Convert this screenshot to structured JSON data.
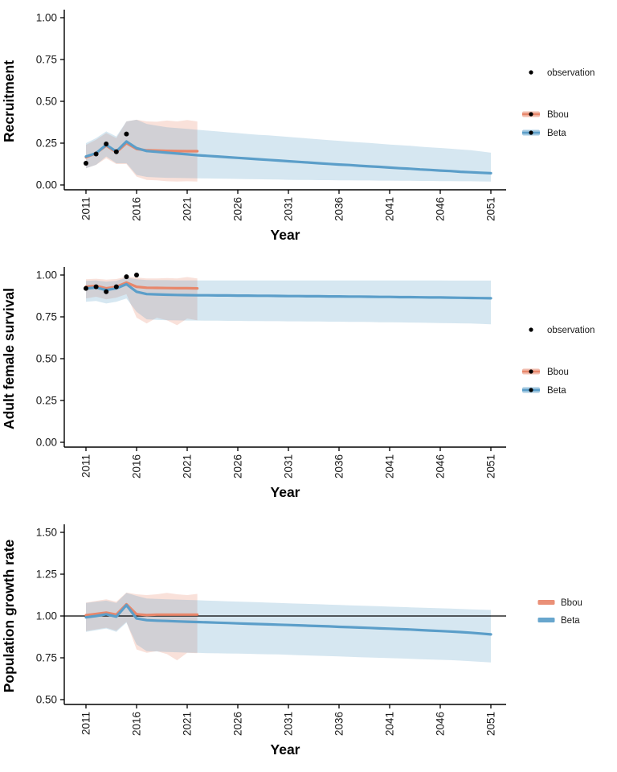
{
  "colors": {
    "bbou": "#E8876B",
    "beta": "#5B9EC9",
    "observation": "#000000",
    "axis": "#000000",
    "tick_label": "#1a1a1a",
    "background": "#FFFFFF"
  },
  "chart_data": [
    {
      "type": "line",
      "title": "",
      "ylabel": "Recruitment",
      "xlabel": "Year",
      "ylim": [
        0.0,
        1.0
      ],
      "xlim": [
        2009,
        2052
      ],
      "grid": false,
      "legend_position": "right",
      "yticks": [
        "0.00",
        "0.25",
        "0.50",
        "0.75",
        "1.00"
      ],
      "xticks": [
        2011,
        2016,
        2021,
        2026,
        2031,
        2036,
        2041,
        2046,
        2051
      ],
      "hline": null,
      "legend": [
        {
          "label": "observation",
          "key": "point"
        },
        {
          "label": "Bbou",
          "key": "ribbon-line-point",
          "color": "bbou"
        },
        {
          "label": "Beta",
          "key": "ribbon-line-point",
          "color": "beta"
        }
      ],
      "observations": {
        "start_year": 2011,
        "values": [
          0.13,
          0.185,
          0.245,
          0.198,
          0.305
        ]
      },
      "series": [
        {
          "name": "Bbou",
          "color": "bbou",
          "start_year": 2011,
          "values": [
            0.165,
            0.19,
            0.235,
            0.195,
            0.25,
            0.215,
            0.207,
            0.206,
            0.204,
            0.203,
            0.202,
            0.202
          ],
          "lower": [
            0.1,
            0.12,
            0.16,
            0.125,
            0.125,
            0.05,
            0.03,
            0.028,
            0.022,
            0.02,
            0.022,
            0.02
          ],
          "upper": [
            0.24,
            0.27,
            0.31,
            0.28,
            0.38,
            0.39,
            0.38,
            0.378,
            0.385,
            0.38,
            0.388,
            0.38
          ]
        },
        {
          "name": "Beta",
          "color": "beta",
          "start_year": 2011,
          "values": [
            0.17,
            0.19,
            0.24,
            0.2,
            0.26,
            0.22,
            0.203,
            0.198,
            0.193,
            0.188,
            0.183,
            0.178,
            0.174,
            0.17,
            0.166,
            0.162,
            0.158,
            0.154,
            0.15,
            0.146,
            0.142,
            0.138,
            0.134,
            0.13,
            0.126,
            0.122,
            0.119,
            0.115,
            0.111,
            0.108,
            0.104,
            0.1,
            0.097,
            0.093,
            0.09,
            0.086,
            0.083,
            0.079,
            0.076,
            0.073,
            0.07
          ],
          "lower": [
            0.1,
            0.12,
            0.17,
            0.13,
            0.13,
            0.06,
            0.048,
            0.045,
            0.043,
            0.042,
            0.041,
            0.04,
            0.039,
            0.038,
            0.037,
            0.036,
            0.035,
            0.034,
            0.033,
            0.032,
            0.031,
            0.03,
            0.03,
            0.029,
            0.029,
            0.028,
            0.028,
            0.027,
            0.027,
            0.026,
            0.026,
            0.025,
            0.025,
            0.024,
            0.024,
            0.023,
            0.023,
            0.022,
            0.022,
            0.021,
            0.02
          ],
          "upper": [
            0.25,
            0.28,
            0.32,
            0.29,
            0.38,
            0.39,
            0.365,
            0.355,
            0.345,
            0.34,
            0.335,
            0.33,
            0.325,
            0.32,
            0.315,
            0.31,
            0.305,
            0.3,
            0.297,
            0.292,
            0.287,
            0.282,
            0.278,
            0.273,
            0.268,
            0.264,
            0.259,
            0.255,
            0.251,
            0.246,
            0.242,
            0.238,
            0.234,
            0.229,
            0.225,
            0.221,
            0.217,
            0.212,
            0.208,
            0.201,
            0.193
          ]
        }
      ]
    },
    {
      "type": "line",
      "title": "",
      "ylabel": "Adult female survival",
      "xlabel": "Year",
      "ylim": [
        0.0,
        1.0
      ],
      "xlim": [
        2009,
        2052
      ],
      "grid": false,
      "legend_position": "right",
      "yticks": [
        "0.00",
        "0.25",
        "0.50",
        "0.75",
        "1.00"
      ],
      "xticks": [
        2011,
        2016,
        2021,
        2026,
        2031,
        2036,
        2041,
        2046,
        2051
      ],
      "hline": null,
      "legend": [
        {
          "label": "observation",
          "key": "point"
        },
        {
          "label": "Bbou",
          "key": "ribbon-line-point",
          "color": "bbou"
        },
        {
          "label": "Beta",
          "key": "ribbon-line-point",
          "color": "beta"
        }
      ],
      "observations": {
        "start_year": 2011,
        "values": [
          0.92,
          0.93,
          0.9,
          0.93,
          0.99,
          1.0
        ]
      },
      "series": [
        {
          "name": "Bbou",
          "color": "bbou",
          "start_year": 2011,
          "values": [
            0.93,
            0.935,
            0.92,
            0.93,
            0.955,
            0.93,
            0.924,
            0.923,
            0.922,
            0.921,
            0.921,
            0.92
          ],
          "lower": [
            0.86,
            0.87,
            0.855,
            0.865,
            0.885,
            0.745,
            0.71,
            0.745,
            0.73,
            0.7,
            0.74,
            0.73
          ],
          "upper": [
            0.975,
            0.978,
            0.972,
            0.976,
            0.99,
            0.985,
            0.98,
            0.98,
            0.982,
            0.98,
            0.988,
            0.98
          ]
        },
        {
          "name": "Beta",
          "color": "beta",
          "start_year": 2011,
          "values": [
            0.92,
            0.925,
            0.91,
            0.92,
            0.945,
            0.9,
            0.886,
            0.884,
            0.882,
            0.881,
            0.88,
            0.879,
            0.879,
            0.878,
            0.878,
            0.877,
            0.877,
            0.876,
            0.876,
            0.875,
            0.874,
            0.874,
            0.873,
            0.873,
            0.872,
            0.872,
            0.871,
            0.871,
            0.87,
            0.869,
            0.869,
            0.868,
            0.868,
            0.867,
            0.866,
            0.866,
            0.865,
            0.864,
            0.863,
            0.862,
            0.861
          ],
          "lower": [
            0.84,
            0.845,
            0.83,
            0.84,
            0.86,
            0.78,
            0.735,
            0.732,
            0.73,
            0.729,
            0.728,
            0.728,
            0.727,
            0.727,
            0.726,
            0.726,
            0.725,
            0.725,
            0.724,
            0.724,
            0.723,
            0.723,
            0.722,
            0.722,
            0.721,
            0.721,
            0.72,
            0.72,
            0.719,
            0.718,
            0.718,
            0.717,
            0.716,
            0.715,
            0.714,
            0.713,
            0.712,
            0.711,
            0.71,
            0.708,
            0.706
          ],
          "upper": [
            0.965,
            0.968,
            0.96,
            0.965,
            0.985,
            0.975,
            0.97,
            0.969,
            0.969,
            0.968,
            0.968,
            0.968,
            0.968,
            0.968,
            0.968,
            0.968,
            0.968,
            0.968,
            0.968,
            0.968,
            0.968,
            0.968,
            0.968,
            0.968,
            0.968,
            0.968,
            0.968,
            0.968,
            0.968,
            0.968,
            0.968,
            0.968,
            0.968,
            0.968,
            0.968,
            0.968,
            0.967,
            0.967,
            0.967,
            0.967,
            0.967
          ]
        }
      ]
    },
    {
      "type": "line",
      "title": "",
      "ylabel": "Population growth rate",
      "xlabel": "Year",
      "ylim": [
        0.5,
        1.5
      ],
      "xlim": [
        2009,
        2052
      ],
      "grid": false,
      "legend_position": "right",
      "yticks": [
        "0.50",
        "0.75",
        "1.00",
        "1.25",
        "1.50"
      ],
      "xticks": [
        2011,
        2016,
        2021,
        2026,
        2031,
        2036,
        2041,
        2046,
        2051
      ],
      "hline": 1.0,
      "legend": [
        {
          "label": "Bbou",
          "key": "ribbon",
          "color": "bbou"
        },
        {
          "label": "Beta",
          "key": "ribbon",
          "color": "beta"
        }
      ],
      "observations": null,
      "series": [
        {
          "name": "Bbou",
          "color": "bbou",
          "start_year": 2011,
          "values": [
            1.005,
            1.012,
            1.02,
            1.008,
            1.07,
            1.01,
            1.006,
            1.008,
            1.008,
            1.008,
            1.008,
            1.008
          ],
          "lower": [
            0.91,
            0.92,
            0.93,
            0.912,
            0.965,
            0.8,
            0.78,
            0.79,
            0.772,
            0.735,
            0.78,
            0.778
          ],
          "upper": [
            1.08,
            1.09,
            1.1,
            1.085,
            1.14,
            1.13,
            1.125,
            1.13,
            1.138,
            1.13,
            1.125,
            1.132
          ]
        },
        {
          "name": "Beta",
          "color": "beta",
          "start_year": 2011,
          "values": [
            0.992,
            1.0,
            1.01,
            0.996,
            1.065,
            0.985,
            0.975,
            0.972,
            0.97,
            0.968,
            0.966,
            0.964,
            0.962,
            0.96,
            0.958,
            0.956,
            0.954,
            0.952,
            0.95,
            0.948,
            0.946,
            0.944,
            0.942,
            0.94,
            0.938,
            0.935,
            0.933,
            0.931,
            0.929,
            0.926,
            0.924,
            0.921,
            0.919,
            0.916,
            0.913,
            0.91,
            0.907,
            0.904,
            0.9,
            0.895,
            0.89
          ],
          "lower": [
            0.905,
            0.915,
            0.925,
            0.905,
            0.96,
            0.83,
            0.79,
            0.788,
            0.785,
            0.783,
            0.781,
            0.78,
            0.778,
            0.777,
            0.776,
            0.775,
            0.774,
            0.772,
            0.771,
            0.77,
            0.768,
            0.766,
            0.764,
            0.762,
            0.76,
            0.758,
            0.756,
            0.754,
            0.752,
            0.75,
            0.748,
            0.746,
            0.744,
            0.742,
            0.74,
            0.738,
            0.736,
            0.733,
            0.73,
            0.726,
            0.722
          ],
          "upper": [
            1.078,
            1.085,
            1.092,
            1.078,
            1.138,
            1.12,
            1.105,
            1.102,
            1.1,
            1.098,
            1.096,
            1.094,
            1.092,
            1.09,
            1.088,
            1.086,
            1.084,
            1.082,
            1.08,
            1.078,
            1.076,
            1.074,
            1.072,
            1.07,
            1.068,
            1.066,
            1.064,
            1.062,
            1.06,
            1.058,
            1.056,
            1.054,
            1.052,
            1.05,
            1.048,
            1.046,
            1.044,
            1.042,
            1.04,
            1.038,
            1.036
          ]
        }
      ]
    }
  ]
}
